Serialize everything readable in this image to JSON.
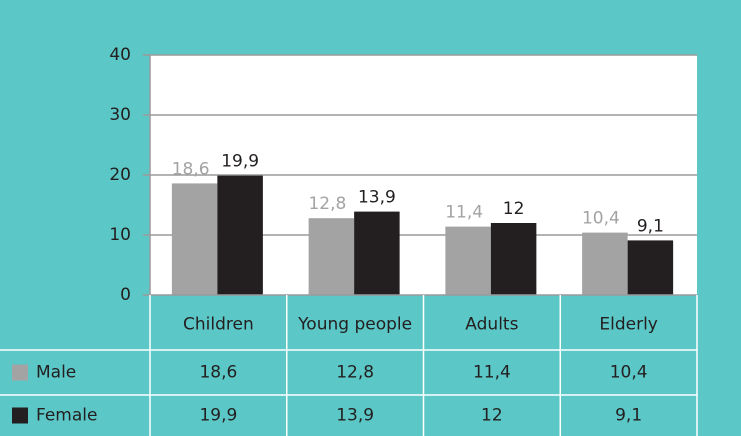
{
  "chart_data": {
    "type": "bar",
    "categories": [
      "Children",
      "Young people",
      "Adults",
      "Elderly"
    ],
    "series": [
      {
        "name": "Male",
        "color": "#a3a3a3",
        "values": [
          18.6,
          12.8,
          11.4,
          10.4
        ],
        "value_labels": [
          "18,6",
          "12,8",
          "11,4",
          "10,4"
        ]
      },
      {
        "name": "Female",
        "color": "#231f20",
        "values": [
          19.9,
          13.9,
          12,
          9.1
        ],
        "value_labels": [
          "19,9",
          "13,9",
          "12",
          "9,1"
        ]
      }
    ],
    "ylim": [
      0,
      40
    ],
    "yticks": [
      0,
      10,
      20,
      30,
      40
    ],
    "grid": true,
    "data_table": true
  }
}
